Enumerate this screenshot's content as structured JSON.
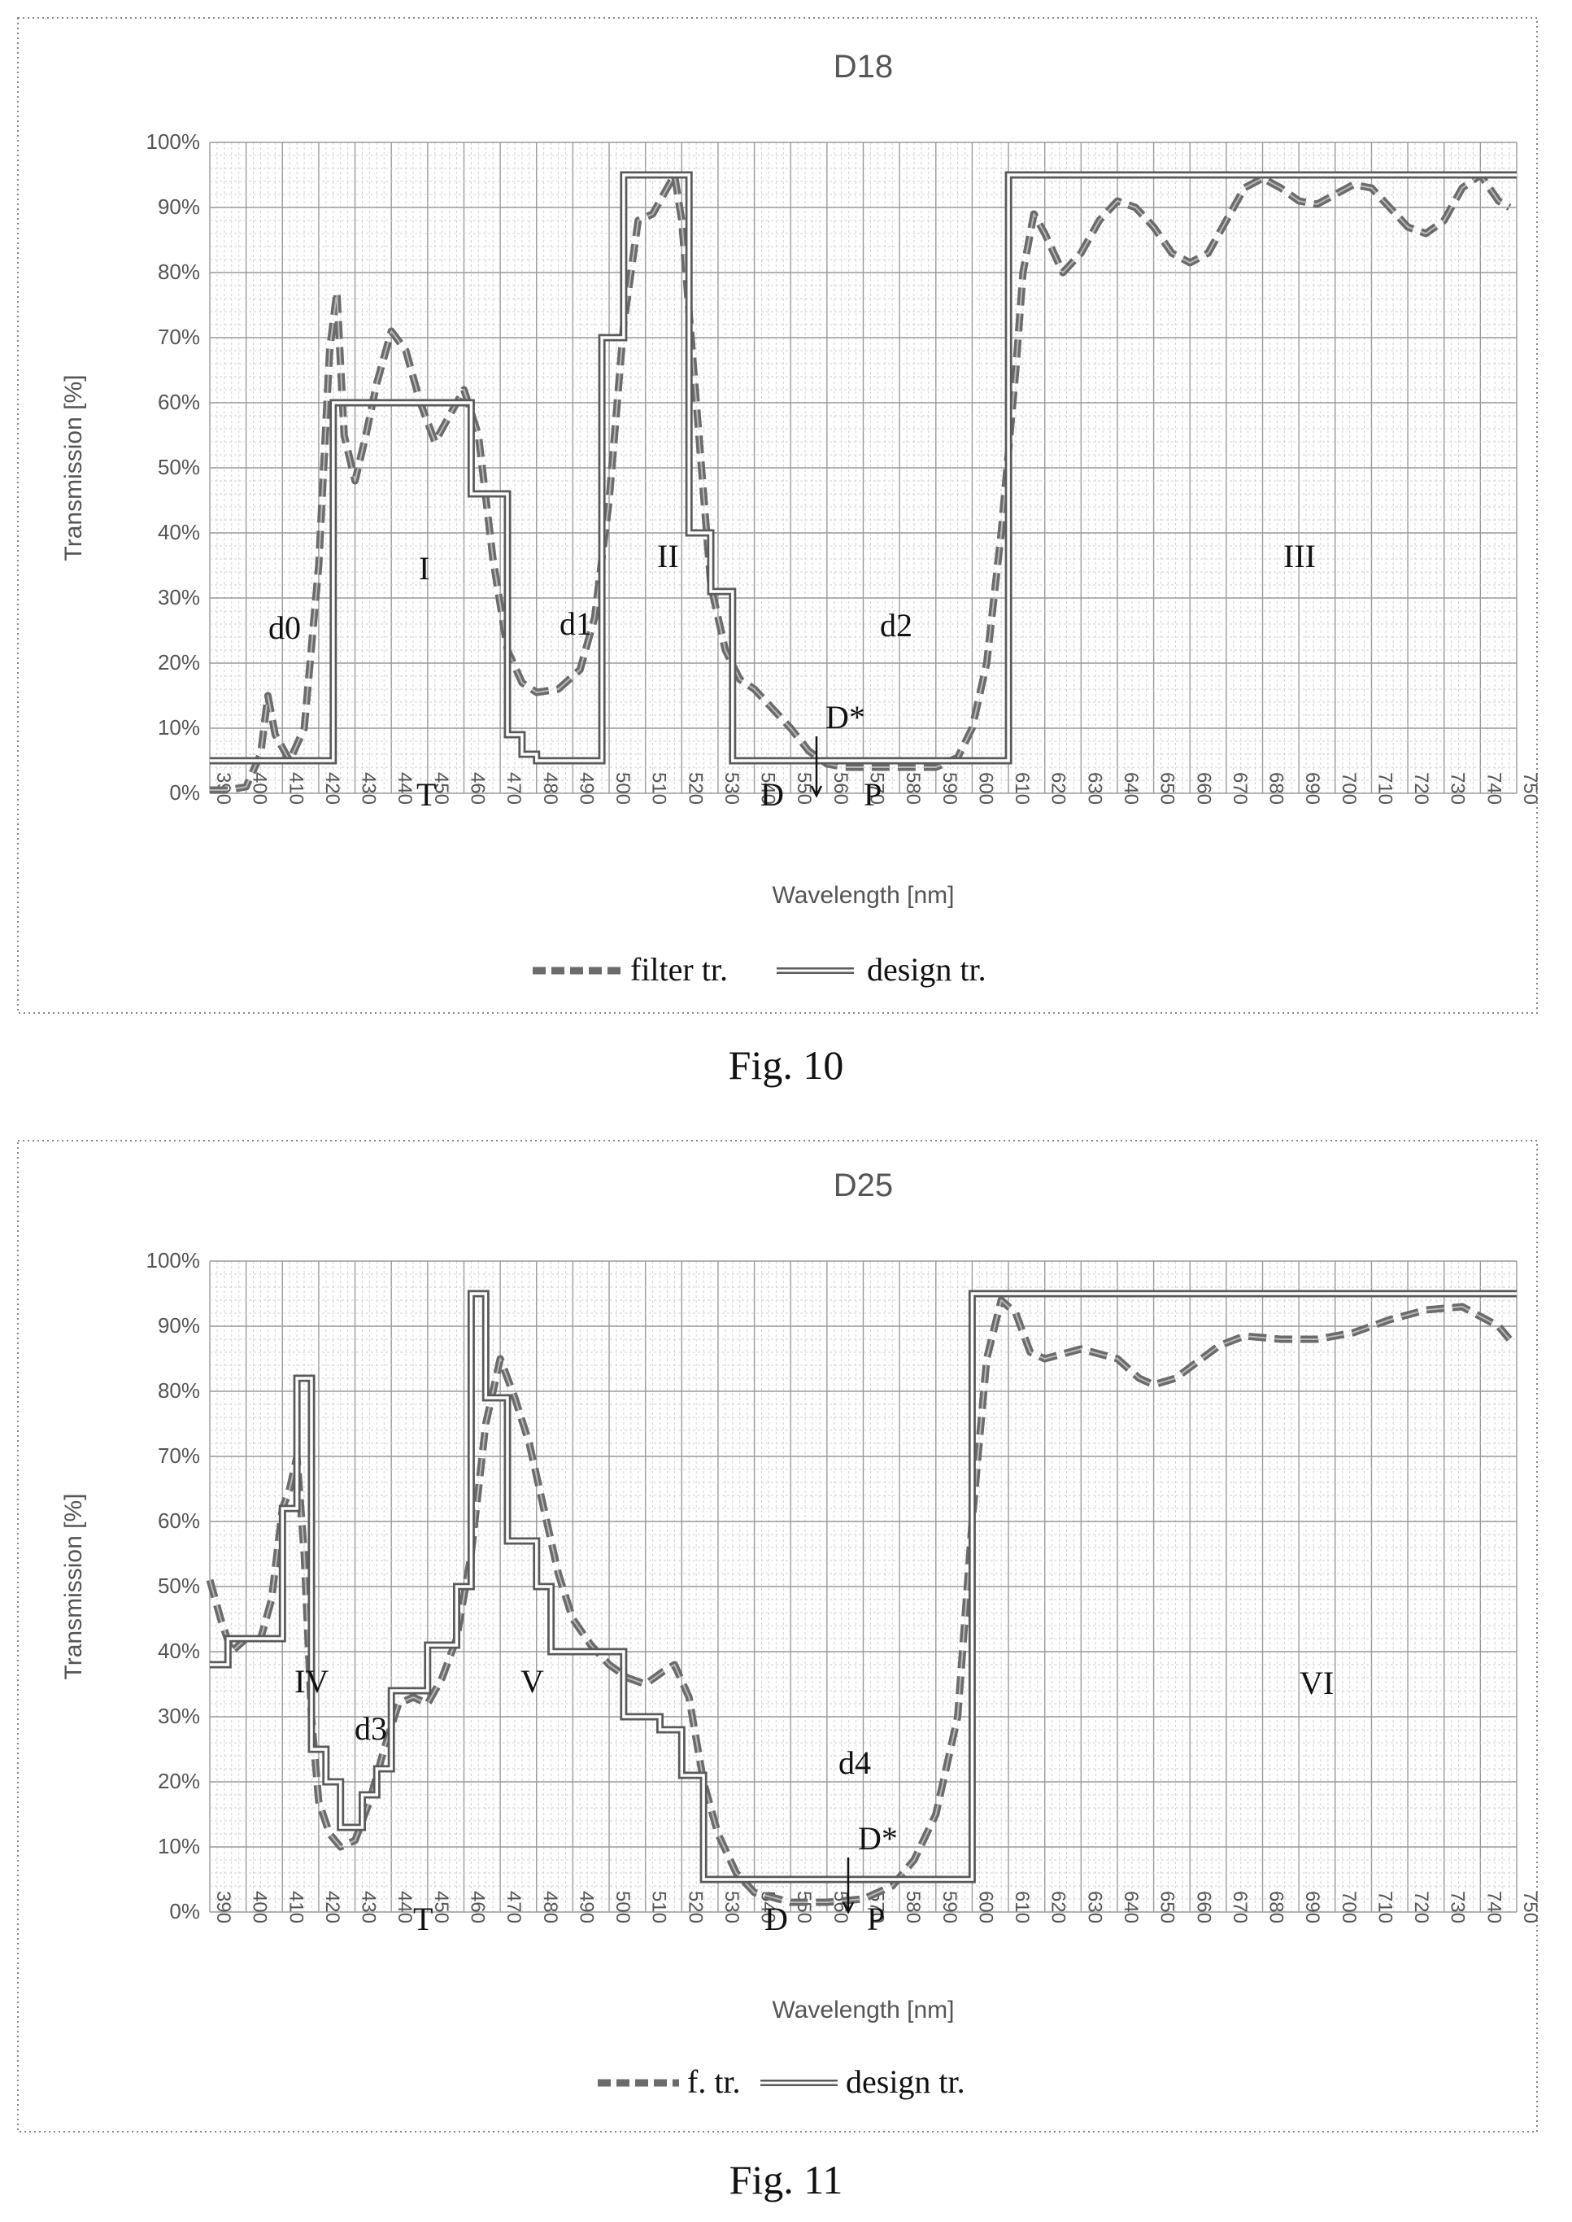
{
  "figures": [
    {
      "caption": "Fig. 10"
    },
    {
      "caption": "Fig. 11"
    }
  ],
  "chart_data": [
    {
      "type": "line",
      "title": "D18",
      "xlabel": "Wavelength [nm]",
      "ylabel": "Transmission [%]",
      "xlim": [
        390,
        750
      ],
      "ylim": [
        0,
        100
      ],
      "x_ticks": [
        390,
        400,
        410,
        420,
        430,
        440,
        450,
        460,
        470,
        480,
        490,
        500,
        510,
        520,
        530,
        540,
        550,
        560,
        570,
        580,
        590,
        600,
        610,
        620,
        630,
        640,
        650,
        660,
        670,
        680,
        690,
        700,
        710,
        720,
        730,
        740,
        750
      ],
      "y_ticks": [
        "0%",
        "10%",
        "20%",
        "30%",
        "40%",
        "50%",
        "60%",
        "70%",
        "80%",
        "90%",
        "100%"
      ],
      "grid": true,
      "legend_position": "bottom",
      "series": [
        {
          "name": "filter tr.",
          "style": "dashed",
          "color": "#6b6b6b",
          "points": [
            [
              390,
              0.5
            ],
            [
              395,
              0.5
            ],
            [
              400,
              1
            ],
            [
              404,
              6
            ],
            [
              406,
              15
            ],
            [
              408,
              9
            ],
            [
              412,
              5
            ],
            [
              416,
              10
            ],
            [
              420,
              35
            ],
            [
              423,
              68
            ],
            [
              425,
              77
            ],
            [
              427,
              55
            ],
            [
              430,
              48
            ],
            [
              433,
              55
            ],
            [
              436,
              63
            ],
            [
              440,
              71
            ],
            [
              444,
              68
            ],
            [
              448,
              60
            ],
            [
              452,
              54
            ],
            [
              456,
              58
            ],
            [
              460,
              62
            ],
            [
              464,
              55
            ],
            [
              468,
              36
            ],
            [
              472,
              22
            ],
            [
              476,
              17
            ],
            [
              480,
              15.5
            ],
            [
              486,
              16
            ],
            [
              492,
              19
            ],
            [
              496,
              27
            ],
            [
              500,
              45
            ],
            [
              504,
              72
            ],
            [
              508,
              88
            ],
            [
              512,
              89
            ],
            [
              516,
              93
            ],
            [
              518,
              95
            ],
            [
              520,
              88
            ],
            [
              524,
              60
            ],
            [
              528,
              32
            ],
            [
              532,
              22
            ],
            [
              536,
              17.5
            ],
            [
              540,
              16
            ],
            [
              545,
              13
            ],
            [
              550,
              10
            ],
            [
              555,
              6.5
            ],
            [
              560,
              4.5
            ],
            [
              565,
              4
            ],
            [
              570,
              4
            ],
            [
              580,
              4
            ],
            [
              590,
              4
            ],
            [
              596,
              5.5
            ],
            [
              600,
              10
            ],
            [
              604,
              20
            ],
            [
              608,
              40
            ],
            [
              612,
              65
            ],
            [
              614,
              80
            ],
            [
              617,
              89
            ],
            [
              620,
              86
            ],
            [
              625,
              80
            ],
            [
              630,
              83
            ],
            [
              635,
              88
            ],
            [
              640,
              91
            ],
            [
              645,
              90
            ],
            [
              650,
              87
            ],
            [
              655,
              83
            ],
            [
              660,
              81.5
            ],
            [
              665,
              83
            ],
            [
              670,
              88
            ],
            [
              675,
              93
            ],
            [
              680,
              94.5
            ],
            [
              685,
              93
            ],
            [
              690,
              91
            ],
            [
              695,
              90.5
            ],
            [
              700,
              92
            ],
            [
              705,
              93.5
            ],
            [
              710,
              93
            ],
            [
              715,
              90
            ],
            [
              720,
              87
            ],
            [
              725,
              86
            ],
            [
              730,
              88
            ],
            [
              735,
              93
            ],
            [
              740,
              95
            ],
            [
              745,
              91
            ],
            [
              748,
              90
            ]
          ]
        },
        {
          "name": "design tr.",
          "style": "double",
          "color": "#6b6b6b",
          "points": [
            [
              390,
              5
            ],
            [
              424,
              5
            ],
            [
              424,
              60
            ],
            [
              462,
              60
            ],
            [
              462,
              46
            ],
            [
              472,
              46
            ],
            [
              472,
              9
            ],
            [
              476,
              9
            ],
            [
              476,
              6
            ],
            [
              480,
              6
            ],
            [
              480,
              5
            ],
            [
              498,
              5
            ],
            [
              498,
              70
            ],
            [
              504,
              70
            ],
            [
              504,
              95
            ],
            [
              522,
              95
            ],
            [
              522,
              40
            ],
            [
              528,
              40
            ],
            [
              528,
              31
            ],
            [
              534,
              31
            ],
            [
              534,
              5
            ],
            [
              610,
              5
            ],
            [
              610,
              95
            ],
            [
              750,
              95
            ]
          ]
        }
      ],
      "annotations": [
        "d0",
        "I",
        "d1",
        "II",
        "d2",
        "III",
        "T",
        "D",
        "D*",
        "P"
      ]
    },
    {
      "type": "line",
      "title": "D25",
      "xlabel": "Wavelength [nm]",
      "ylabel": "Transmission [%]",
      "xlim": [
        390,
        750
      ],
      "ylim": [
        0,
        100
      ],
      "x_ticks": [
        390,
        400,
        410,
        420,
        430,
        440,
        450,
        460,
        470,
        480,
        490,
        500,
        510,
        520,
        530,
        540,
        550,
        560,
        570,
        580,
        590,
        600,
        610,
        620,
        630,
        640,
        650,
        660,
        670,
        680,
        690,
        700,
        710,
        720,
        730,
        740,
        750
      ],
      "y_ticks": [
        "0%",
        "10%",
        "20%",
        "30%",
        "40%",
        "50%",
        "60%",
        "70%",
        "80%",
        "90%",
        "100%"
      ],
      "grid": true,
      "legend_position": "bottom",
      "series": [
        {
          "name": "f. tr.",
          "style": "dashed",
          "color": "#6b6b6b",
          "points": [
            [
              390,
              51
            ],
            [
              393,
              45
            ],
            [
              396,
              40
            ],
            [
              400,
              42
            ],
            [
              404,
              42
            ],
            [
              407,
              48
            ],
            [
              410,
              62
            ],
            [
              412,
              65
            ],
            [
              414,
              70
            ],
            [
              416,
              55
            ],
            [
              418,
              30
            ],
            [
              420,
              17
            ],
            [
              423,
              12
            ],
            [
              426,
              10
            ],
            [
              430,
              11
            ],
            [
              434,
              17
            ],
            [
              438,
              25
            ],
            [
              442,
              32
            ],
            [
              446,
              33
            ],
            [
              450,
              32
            ],
            [
              454,
              36
            ],
            [
              458,
              42
            ],
            [
              462,
              55
            ],
            [
              466,
              75
            ],
            [
              470,
              85
            ],
            [
              474,
              79
            ],
            [
              478,
              72
            ],
            [
              482,
              62
            ],
            [
              486,
              52
            ],
            [
              490,
              45
            ],
            [
              495,
              41
            ],
            [
              500,
              38
            ],
            [
              505,
              36
            ],
            [
              510,
              35
            ],
            [
              515,
              37
            ],
            [
              518,
              38
            ],
            [
              522,
              33
            ],
            [
              526,
              20
            ],
            [
              530,
              12
            ],
            [
              535,
              6
            ],
            [
              540,
              3
            ],
            [
              550,
              1.5
            ],
            [
              560,
              1.5
            ],
            [
              570,
              2
            ],
            [
              578,
              4
            ],
            [
              584,
              8
            ],
            [
              590,
              15
            ],
            [
              596,
              30
            ],
            [
              600,
              60
            ],
            [
              604,
              85
            ],
            [
              608,
              94
            ],
            [
              612,
              92
            ],
            [
              616,
              86
            ],
            [
              620,
              85
            ],
            [
              630,
              86.5
            ],
            [
              640,
              85
            ],
            [
              646,
              82
            ],
            [
              650,
              81
            ],
            [
              656,
              82
            ],
            [
              662,
              84.5
            ],
            [
              668,
              87
            ],
            [
              675,
              88.5
            ],
            [
              685,
              88
            ],
            [
              695,
              88
            ],
            [
              705,
              89
            ],
            [
              715,
              91
            ],
            [
              725,
              92.5
            ],
            [
              735,
              93
            ],
            [
              745,
              90
            ],
            [
              748,
              88
            ]
          ]
        },
        {
          "name": "design tr.",
          "style": "double",
          "color": "#6b6b6b",
          "points": [
            [
              390,
              38
            ],
            [
              395,
              38
            ],
            [
              395,
              42
            ],
            [
              410,
              42
            ],
            [
              410,
              62
            ],
            [
              414,
              62
            ],
            [
              414,
              82
            ],
            [
              418,
              82
            ],
            [
              418,
              25
            ],
            [
              422,
              25
            ],
            [
              422,
              20
            ],
            [
              426,
              20
            ],
            [
              426,
              13
            ],
            [
              432,
              13
            ],
            [
              432,
              18
            ],
            [
              436,
              18
            ],
            [
              436,
              22
            ],
            [
              440,
              22
            ],
            [
              440,
              34
            ],
            [
              450,
              34
            ],
            [
              450,
              41
            ],
            [
              458,
              41
            ],
            [
              458,
              50
            ],
            [
              462,
              50
            ],
            [
              462,
              95
            ],
            [
              466,
              95
            ],
            [
              466,
              79
            ],
            [
              472,
              79
            ],
            [
              472,
              57
            ],
            [
              480,
              57
            ],
            [
              480,
              50
            ],
            [
              484,
              50
            ],
            [
              484,
              40
            ],
            [
              504,
              40
            ],
            [
              504,
              30
            ],
            [
              514,
              30
            ],
            [
              514,
              28
            ],
            [
              520,
              28
            ],
            [
              520,
              21
            ],
            [
              526,
              21
            ],
            [
              526,
              5
            ],
            [
              600,
              5
            ],
            [
              600,
              95
            ],
            [
              750,
              95
            ]
          ]
        }
      ],
      "annotations": [
        "IV",
        "d3",
        "V",
        "d4",
        "VI",
        "T",
        "D",
        "D*",
        "P"
      ]
    }
  ]
}
